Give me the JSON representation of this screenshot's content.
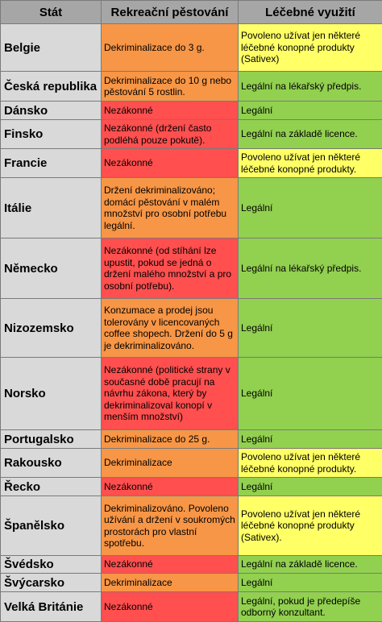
{
  "header": {
    "col1": "Stát",
    "col2": "Rekreační pěstování",
    "col3": "Léčebné využití"
  },
  "colors": {
    "dekriminalizace": "#f79646",
    "nezakonne": "#ff4f4f",
    "castecne": "#ffff66",
    "legalni": "#92d050"
  },
  "rows": [
    {
      "country": "Belgie",
      "rec": "Dekriminalizace do 3 g.",
      "med": "Povoleno užívat jen některé léčebné konopné produkty (Sativex)"
    },
    {
      "country": "Česká republika",
      "rec": "Dekriminalizace do 10 g nebo pěstování 5 rostlin.",
      "med": "Legální na lékařský předpis."
    },
    {
      "country": "Dánsko",
      "rec": "Nezákonné",
      "med": "Legální"
    },
    {
      "country": "Finsko",
      "rec": "Nezákonné (držení často podléhá pouze pokutě).",
      "med": "Legální na základě licence."
    },
    {
      "country": "Francie",
      "rec": "Nezákonné",
      "med": "Povoleno užívat jen některé léčebné konopné produkty."
    },
    {
      "country": "Itálie",
      "rec": "Držení dekriminalizováno; domácí pěstování v malém množství pro osobní potřebu legální.",
      "med": "Legální"
    },
    {
      "country": "Německo",
      "rec": "Nezákonné (od stíhání lze upustit, pokud se jedná o držení malého množství a pro osobní potřebu).",
      "med": "Legální na lékařský předpis."
    },
    {
      "country": "Nizozemsko",
      "rec": "Konzumace a prodej jsou tolerovány v licencovaných coffee shopech. Držení do 5 g je dekriminalizováno.",
      "med": "Legální"
    },
    {
      "country": "Norsko",
      "rec": "Nezákonné (politické strany v současné době pracují na návrhu zákona, který by dekriminalizoval konopí v menším množství)",
      "med": "Legální"
    },
    {
      "country": "Portugalsko",
      "rec": "Dekriminalizace do 25 g.",
      "med": "Legální"
    },
    {
      "country": "Rakousko",
      "rec": "Dekriminalizace",
      "med": "Povoleno užívat jen některé léčebné konopné produkty."
    },
    {
      "country": "Řecko",
      "rec": "Nezákonné",
      "med": "Legální"
    },
    {
      "country": "Španělsko",
      "rec": "Dekriminalizováno. Povoleno užívání a držení v soukromých prostorách pro vlastní spotřebu.",
      "med": "Povoleno užívat jen některé léčebné konopné produkty (Sativex)."
    },
    {
      "country": "Švédsko",
      "rec": "Nezákonné",
      "med": "Legální na základě licence."
    },
    {
      "country": "Švýcarsko",
      "rec": "Dekriminalizace",
      "med": "Legální"
    },
    {
      "country": "Velká Británie",
      "rec": "Nezákonné",
      "med": "Legální, pokud je předepíše odborný konzultant."
    }
  ]
}
